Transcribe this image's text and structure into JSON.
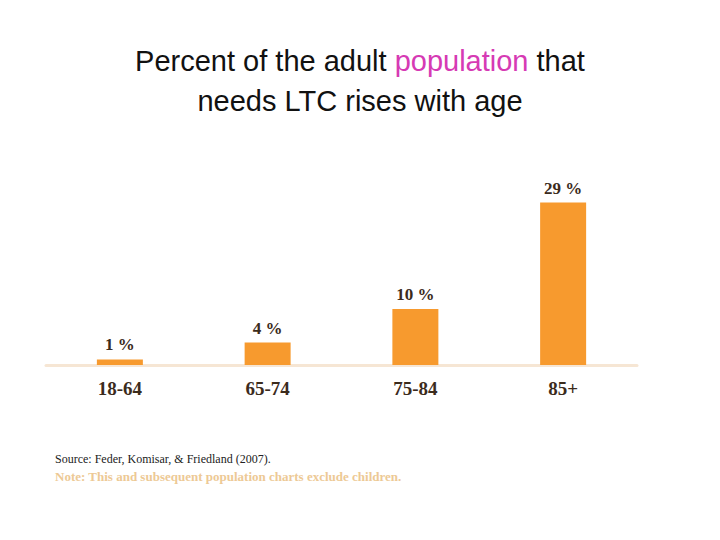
{
  "chart_data": {
    "type": "bar",
    "title": "Percent of the adult population that needs LTC rises with age",
    "title_highlight": "population",
    "categories": [
      "18-64",
      "65-74",
      "75-84",
      "85+"
    ],
    "values": [
      1,
      4,
      10,
      29
    ],
    "value_labels": [
      "1 %",
      "4 %",
      "10 %",
      "29 %"
    ],
    "color": "#f79a2e",
    "ylim": [
      0,
      30
    ],
    "grid": false,
    "data_labels": true,
    "tick_labels": "x",
    "source": "Source: Feder, Komisar, & Friedland (2007).",
    "note": "Note: This and subsequent population charts exclude children."
  }
}
